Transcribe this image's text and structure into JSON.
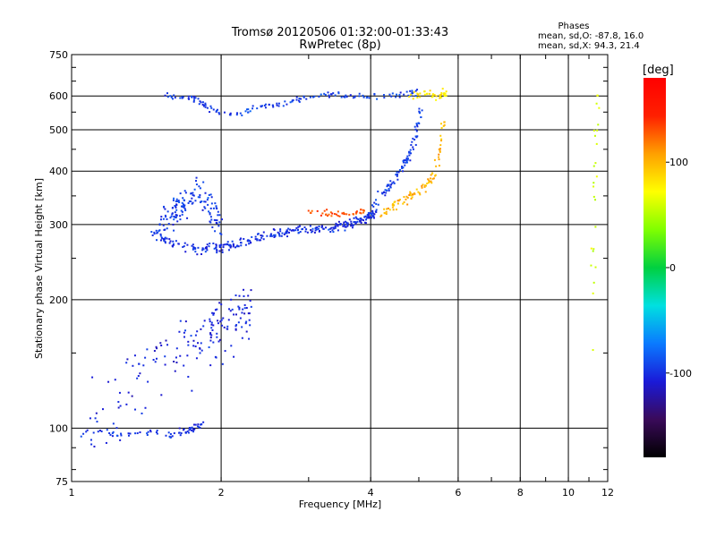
{
  "chart_data": {
    "type": "scatter",
    "title": "Tromsø 20120506 01:32:00-01:33:43",
    "subtitle": "RwPretec (8p)",
    "xlabel": "Frequency [MHz]",
    "ylabel": "Stationary phase Virtual Height [km]",
    "x_scale": "log",
    "y_scale": "log",
    "xlim": [
      1,
      12
    ],
    "ylim": [
      75,
      750
    ],
    "x_ticks": [
      1,
      2,
      4,
      6,
      8,
      10,
      12
    ],
    "x_tick_labels": [
      "1",
      "2",
      "4",
      "6",
      "8",
      "10",
      "12"
    ],
    "y_ticks": [
      75,
      100,
      200,
      300,
      400,
      500,
      600,
      750
    ],
    "y_tick_labels": [
      "75",
      "100",
      "200",
      "300",
      "400",
      "500",
      "600",
      "750"
    ],
    "grid": true,
    "stats": {
      "heading": "Phases",
      "line1": "mean, sd,O: -87.8, 16.0",
      "line2": "mean, sd,X:  94.3, 21.4"
    },
    "colorbar": {
      "label": "[deg]",
      "ticks": [
        100,
        0,
        -100
      ],
      "tick_labels": [
        "100",
        "0",
        "-100"
      ],
      "range": [
        -180,
        180
      ],
      "colors": [
        "#000000",
        "#3a0a5a",
        "#1a1ad8",
        "#0a7aff",
        "#00e0e0",
        "#00d040",
        "#80ff00",
        "#ffff00",
        "#ffa000",
        "#ff2000",
        "#ff0000"
      ]
    },
    "series": [
      {
        "name": "",
        "trace_segments": [
          {
            "x": [
              1.0,
              1.2,
              1.4,
              1.6,
              1.75,
              1.83
            ],
            "y": [
              98,
              97,
              97,
              97,
              99,
              102
            ],
            "phase": -100,
            "spread": 3,
            "n": 70
          },
          {
            "x": [
              1.1,
              1.3,
              1.5,
              1.7,
              1.9,
              2.0,
              2.15,
              2.3
            ],
            "y": [
              110,
              125,
              140,
              155,
              165,
              175,
              185,
              190
            ],
            "phase": -105,
            "spread": 40,
            "n": 170
          },
          {
            "x": [
              1.45,
              1.6,
              1.8,
              2.0,
              2.2,
              2.4,
              2.7,
              3.0,
              3.3,
              3.6,
              3.9,
              4.1
            ],
            "y": [
              290,
              270,
              262,
              265,
              272,
              280,
              288,
              292,
              295,
              300,
              310,
              320
            ],
            "phase": -100,
            "spread": 10,
            "n": 300
          },
          {
            "x": [
              1.5,
              1.6,
              1.7,
              1.8,
              1.9,
              2.0
            ],
            "y": [
              300,
              320,
              340,
              360,
              330,
              300
            ],
            "phase": -95,
            "spread": 40,
            "n": 140
          },
          {
            "x": [
              4.0,
              4.3,
              4.6,
              4.8,
              4.95,
              5.1
            ],
            "y": [
              330,
              360,
              400,
              440,
              500,
              580
            ],
            "phase": -95,
            "spread": 15,
            "n": 90
          },
          {
            "x": [
              4.2,
              4.6,
              5.0,
              5.3,
              5.5,
              5.6
            ],
            "y": [
              320,
              340,
              360,
              380,
              430,
              520
            ],
            "phase": 100,
            "spread": 15,
            "n": 90
          },
          {
            "x": [
              3.0,
              3.3,
              3.6,
              3.9
            ],
            "y": [
              320,
              318,
              318,
              322
            ],
            "phase": 130,
            "spread": 8,
            "n": 40
          },
          {
            "x": [
              1.55,
              1.75,
              1.9,
              2.1,
              2.4,
              2.7,
              3.0,
              3.4,
              3.8,
              4.2,
              4.6,
              5.0
            ],
            "y": [
              600,
              595,
              560,
              540,
              565,
              575,
              600,
              605,
              600,
              600,
              605,
              610
            ],
            "phase": -95,
            "spread": 15,
            "n": 150
          },
          {
            "x": [
              4.8,
              5.2,
              5.5,
              5.7
            ],
            "y": [
              600,
              610,
              600,
              610
            ],
            "phase": 80,
            "spread": 20,
            "n": 40
          },
          {
            "x": [
              11.0,
              11.2,
              11.3,
              11.5
            ],
            "y": [
              100,
              250,
              400,
              600
            ],
            "phase": 60,
            "spread": 60,
            "n": 25
          }
        ]
      }
    ]
  }
}
